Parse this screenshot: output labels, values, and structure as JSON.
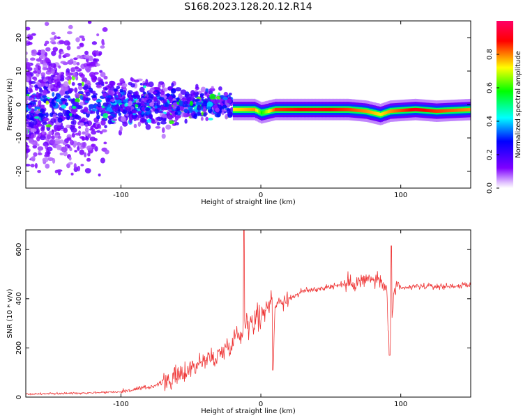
{
  "title": "S168.2023.128.20.12.R14",
  "chart_data": [
    {
      "type": "heatmap",
      "xlabel": "Height of straight line (km)",
      "ylabel": "Frequency (Hz)",
      "xlim": [
        -168,
        150
      ],
      "ylim": [
        -25,
        25
      ],
      "xticks": [
        -100,
        0,
        100
      ],
      "yticks": [
        -20,
        -10,
        0,
        10,
        20
      ],
      "colorbar": {
        "label": "Normalized spectral amplitude",
        "range": [
          0,
          1
        ],
        "ticks": [
          0.0,
          0.2,
          0.4,
          0.6,
          0.8
        ],
        "colormap": [
          "#ffffff",
          "#d8b8f8",
          "#7f00ff",
          "#0000ff",
          "#00ffff",
          "#00ff00",
          "#ffff00",
          "#ff0000",
          "#ff0066"
        ]
      },
      "ridge": [
        {
          "x": -20,
          "freq": -1.5,
          "amp": 0.75
        },
        {
          "x": -5,
          "freq": -1.5,
          "amp": 0.8
        },
        {
          "x": 0,
          "freq": -2.5,
          "amp": 0.6
        },
        {
          "x": 10,
          "freq": -1.5,
          "amp": 0.85
        },
        {
          "x": 40,
          "freq": -1.5,
          "amp": 0.9
        },
        {
          "x": 62,
          "freq": -1.5,
          "amp": 0.85
        },
        {
          "x": 75,
          "freq": -2,
          "amp": 0.8
        },
        {
          "x": 85,
          "freq": -3,
          "amp": 0.75
        },
        {
          "x": 92,
          "freq": -2,
          "amp": 0.8
        },
        {
          "x": 110,
          "freq": -1.5,
          "amp": 0.9
        },
        {
          "x": 125,
          "freq": -2,
          "amp": 0.85
        },
        {
          "x": 150,
          "freq": -1.5,
          "amp": 0.8
        }
      ]
    },
    {
      "type": "line",
      "xlabel": "Height of straight line (km)",
      "ylabel": "SNR (10 * v/v)",
      "xlim": [
        -168,
        150
      ],
      "ylim": [
        0,
        680
      ],
      "xticks": [
        -100,
        0,
        100
      ],
      "yticks": [
        0,
        200,
        400,
        600
      ],
      "color": "#ee3333",
      "series": [
        {
          "x": [
            -168,
            -140,
            -120,
            -100,
            -80,
            -60,
            -50,
            -40,
            -30,
            -20,
            -12,
            -10,
            -5,
            0,
            5,
            8,
            9,
            10,
            20,
            30,
            50,
            70,
            80,
            85,
            90,
            92,
            95,
            100,
            110,
            130,
            150
          ],
          "y": [
            12,
            15,
            18,
            22,
            40,
            80,
            120,
            150,
            170,
            230,
            280,
            300,
            320,
            330,
            360,
            420,
            130,
            380,
            400,
            430,
            450,
            470,
            480,
            470,
            440,
            170,
            430,
            440,
            450,
            450,
            455
          ]
        }
      ]
    }
  ]
}
